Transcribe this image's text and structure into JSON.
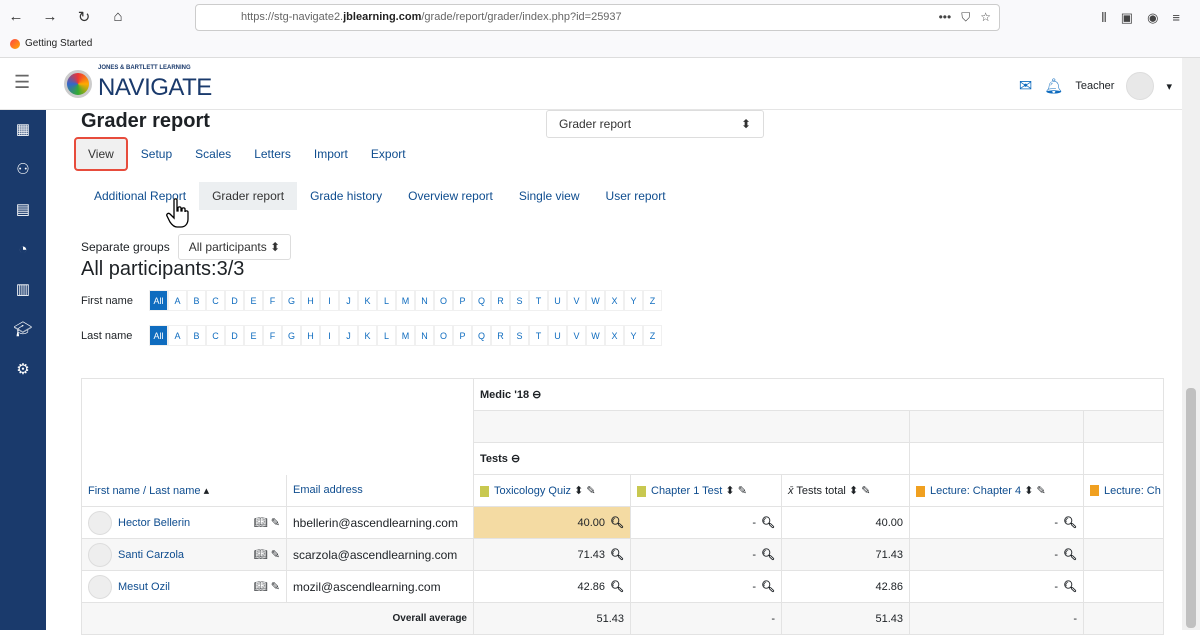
{
  "browser": {
    "url_prefix": "https://stg-navigate2.",
    "url_domain": "jblearning.com",
    "url_path": "/grade/report/grader/index.php?id=25937",
    "bookmark": "Getting Started"
  },
  "header": {
    "logo_small": "JONES & BARTLETT LEARNING",
    "logo_big": "NAVIGATE",
    "user": "Teacher"
  },
  "page": {
    "title": "Grader report",
    "report_select": "Grader report"
  },
  "tabs": [
    "View",
    "Setup",
    "Scales",
    "Letters",
    "Import",
    "Export"
  ],
  "subtabs": [
    "Additional Report",
    "Grader report",
    "Grade history",
    "Overview report",
    "Single view",
    "User report"
  ],
  "groups": {
    "label": "Separate groups",
    "value": "All participants"
  },
  "participants": "All participants:3/3",
  "initials": {
    "first_label": "First name",
    "last_label": "Last name",
    "all": "All",
    "letters": [
      "A",
      "B",
      "C",
      "D",
      "E",
      "F",
      "G",
      "H",
      "I",
      "J",
      "K",
      "L",
      "M",
      "N",
      "O",
      "P",
      "Q",
      "R",
      "S",
      "T",
      "U",
      "V",
      "W",
      "X",
      "Y",
      "Z"
    ]
  },
  "grader": {
    "category": "Medic '18",
    "subcategory": "Tests",
    "col_name": "First name / Last name",
    "col_email": "Email address",
    "items": [
      "Toxicology Quiz",
      "Chapter 1 Test",
      "Tests total",
      "Lecture: Chapter 4",
      "Lecture: Ch"
    ],
    "rows": [
      {
        "name": "Hector Bellerin",
        "email": "hbellerin@ascendlearning.com",
        "grades": [
          "40.00",
          "-",
          "40.00",
          "-"
        ]
      },
      {
        "name": "Santi Carzola",
        "email": "scarzola@ascendlearning.com",
        "grades": [
          "71.43",
          "-",
          "71.43",
          "-"
        ]
      },
      {
        "name": "Mesut Ozil",
        "email": "mozil@ascendlearning.com",
        "grades": [
          "42.86",
          "-",
          "42.86",
          "-"
        ]
      }
    ],
    "avg_label": "Overall average",
    "averages": [
      "51.43",
      "-",
      "51.43",
      "-"
    ]
  }
}
